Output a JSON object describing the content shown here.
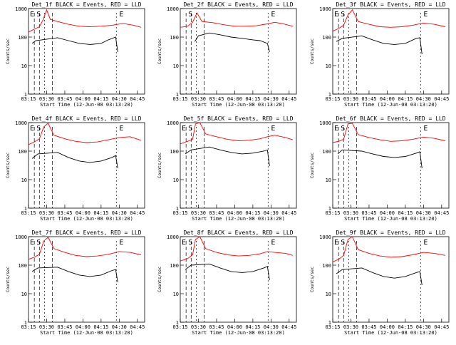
{
  "colors": {
    "events": "#000000",
    "lld": "#ff0000",
    "marker": "#000000"
  },
  "shared": {
    "xlabel": "Start Time (12-Jun-08 03:13:20)",
    "ylabel": "Counts/sec",
    "xticks": [
      "03:15",
      "03:30",
      "03:45",
      "04:00",
      "04:15",
      "04:30",
      "04:45"
    ],
    "yticks": [
      "1",
      "10",
      "100",
      "1000"
    ],
    "ylim": [
      1,
      1000
    ],
    "y_scale": "log",
    "marker_labels": {
      "start": "S",
      "end": "E"
    },
    "series_names": [
      "Events",
      "LLD"
    ]
  },
  "chart_data": [
    {
      "type": "line",
      "title": "Det_1f BLACK = Events, RED = LLD",
      "lld": [
        [
          3.25,
          150
        ],
        [
          3.33,
          190
        ],
        [
          3.4,
          230
        ],
        [
          3.45,
          400
        ],
        [
          3.5,
          900
        ],
        [
          3.55,
          420
        ],
        [
          3.65,
          350
        ],
        [
          3.8,
          280
        ],
        [
          3.95,
          240
        ],
        [
          4.1,
          230
        ],
        [
          4.25,
          240
        ],
        [
          4.4,
          260
        ],
        [
          4.55,
          300
        ],
        [
          4.7,
          260
        ],
        [
          4.8,
          220
        ]
      ],
      "events": [
        [
          3.3,
          60
        ],
        [
          3.35,
          75
        ],
        [
          3.65,
          95
        ],
        [
          3.8,
          75
        ],
        [
          3.95,
          60
        ],
        [
          4.1,
          55
        ],
        [
          4.25,
          60
        ],
        [
          4.35,
          80
        ],
        [
          4.45,
          100
        ],
        [
          4.48,
          30
        ]
      ],
      "legend_letters": [
        "E",
        "S",
        "E"
      ]
    },
    {
      "type": "line",
      "title": "Det_2f BLACK = Events, RED = LLD",
      "lld": [
        [
          3.25,
          220
        ],
        [
          3.35,
          240
        ],
        [
          3.42,
          330
        ],
        [
          3.48,
          700
        ],
        [
          3.55,
          350
        ],
        [
          3.7,
          320
        ],
        [
          3.85,
          270
        ],
        [
          4.0,
          240
        ],
        [
          4.15,
          240
        ],
        [
          4.3,
          250
        ],
        [
          4.45,
          290
        ],
        [
          4.55,
          330
        ],
        [
          4.65,
          300
        ],
        [
          4.8,
          240
        ]
      ],
      "events": [
        [
          3.45,
          70
        ],
        [
          3.5,
          110
        ],
        [
          3.65,
          140
        ],
        [
          3.8,
          120
        ],
        [
          3.95,
          100
        ],
        [
          4.1,
          90
        ],
        [
          4.25,
          80
        ],
        [
          4.35,
          75
        ],
        [
          4.45,
          60
        ],
        [
          4.48,
          30
        ]
      ],
      "legend_letters": [
        "S",
        "E"
      ]
    },
    {
      "type": "line",
      "title": "Det_3f BLACK = Events, RED = LLD",
      "lld": [
        [
          3.25,
          160
        ],
        [
          3.33,
          200
        ],
        [
          3.4,
          260
        ],
        [
          3.46,
          600
        ],
        [
          3.52,
          900
        ],
        [
          3.6,
          350
        ],
        [
          3.75,
          280
        ],
        [
          3.9,
          230
        ],
        [
          4.05,
          220
        ],
        [
          4.2,
          230
        ],
        [
          4.35,
          260
        ],
        [
          4.5,
          310
        ],
        [
          4.65,
          280
        ],
        [
          4.8,
          230
        ]
      ],
      "events": [
        [
          3.3,
          70
        ],
        [
          3.38,
          90
        ],
        [
          3.65,
          110
        ],
        [
          3.8,
          80
        ],
        [
          3.95,
          60
        ],
        [
          4.1,
          55
        ],
        [
          4.25,
          60
        ],
        [
          4.4,
          90
        ],
        [
          4.45,
          95
        ],
        [
          4.48,
          25
        ]
      ],
      "legend_letters": [
        "E",
        "S",
        "E"
      ]
    },
    {
      "type": "line",
      "title": "Det_4f BLACK = Events, RED = LLD",
      "lld": [
        [
          3.25,
          170
        ],
        [
          3.33,
          210
        ],
        [
          3.4,
          270
        ],
        [
          3.46,
          700
        ],
        [
          3.52,
          950
        ],
        [
          3.6,
          360
        ],
        [
          3.75,
          270
        ],
        [
          3.9,
          220
        ],
        [
          4.05,
          200
        ],
        [
          4.2,
          210
        ],
        [
          4.35,
          250
        ],
        [
          4.5,
          300
        ],
        [
          4.65,
          320
        ],
        [
          4.8,
          240
        ]
      ],
      "events": [
        [
          3.3,
          55
        ],
        [
          3.38,
          80
        ],
        [
          3.65,
          90
        ],
        [
          3.8,
          60
        ],
        [
          3.95,
          45
        ],
        [
          4.1,
          40
        ],
        [
          4.25,
          45
        ],
        [
          4.4,
          60
        ],
        [
          4.45,
          70
        ],
        [
          4.48,
          25
        ]
      ],
      "legend_letters": [
        "E",
        "S",
        "E"
      ]
    },
    {
      "type": "line",
      "title": "Det_5f BLACK = Events, RED = LLD",
      "lld": [
        [
          3.25,
          180
        ],
        [
          3.35,
          220
        ],
        [
          3.42,
          260
        ],
        [
          3.46,
          900
        ],
        [
          3.52,
          1000
        ],
        [
          3.6,
          400
        ],
        [
          3.75,
          320
        ],
        [
          3.9,
          260
        ],
        [
          4.05,
          230
        ],
        [
          4.2,
          240
        ],
        [
          4.35,
          270
        ],
        [
          4.45,
          320
        ],
        [
          4.55,
          360
        ],
        [
          4.7,
          300
        ],
        [
          4.8,
          250
        ]
      ],
      "events": [
        [
          3.32,
          80
        ],
        [
          3.4,
          110
        ],
        [
          3.65,
          140
        ],
        [
          3.8,
          110
        ],
        [
          3.95,
          90
        ],
        [
          4.1,
          80
        ],
        [
          4.25,
          85
        ],
        [
          4.4,
          100
        ],
        [
          4.45,
          110
        ],
        [
          4.48,
          30
        ]
      ],
      "legend_letters": [
        "E",
        "S",
        "E"
      ]
    },
    {
      "type": "line",
      "title": "Det_6f BLACK = Events, RED = LLD",
      "lld": [
        [
          3.25,
          200
        ],
        [
          3.33,
          220
        ],
        [
          3.4,
          260
        ],
        [
          3.46,
          900
        ],
        [
          3.52,
          950
        ],
        [
          3.6,
          380
        ],
        [
          3.75,
          300
        ],
        [
          3.9,
          250
        ],
        [
          4.05,
          220
        ],
        [
          4.2,
          230
        ],
        [
          4.35,
          260
        ],
        [
          4.5,
          310
        ],
        [
          4.65,
          280
        ],
        [
          4.8,
          230
        ]
      ],
      "events": [
        [
          3.32,
          80
        ],
        [
          3.38,
          110
        ],
        [
          3.65,
          100
        ],
        [
          3.8,
          80
        ],
        [
          3.95,
          65
        ],
        [
          4.1,
          60
        ],
        [
          4.25,
          65
        ],
        [
          4.4,
          85
        ],
        [
          4.45,
          95
        ],
        [
          4.48,
          25
        ]
      ],
      "legend_letters": [
        "E",
        "S",
        "E"
      ]
    },
    {
      "type": "line",
      "title": "Det_7f BLACK = Events, RED = LLD",
      "lld": [
        [
          3.25,
          160
        ],
        [
          3.33,
          190
        ],
        [
          3.4,
          240
        ],
        [
          3.46,
          700
        ],
        [
          3.52,
          950
        ],
        [
          3.6,
          380
        ],
        [
          3.75,
          280
        ],
        [
          3.9,
          220
        ],
        [
          4.05,
          200
        ],
        [
          4.2,
          210
        ],
        [
          4.35,
          240
        ],
        [
          4.5,
          300
        ],
        [
          4.65,
          280
        ],
        [
          4.8,
          230
        ]
      ],
      "events": [
        [
          3.3,
          60
        ],
        [
          3.38,
          80
        ],
        [
          3.65,
          85
        ],
        [
          3.8,
          60
        ],
        [
          3.95,
          45
        ],
        [
          4.1,
          40
        ],
        [
          4.25,
          45
        ],
        [
          4.4,
          65
        ],
        [
          4.45,
          70
        ],
        [
          4.48,
          25
        ]
      ],
      "legend_letters": [
        "E",
        "S",
        "E"
      ]
    },
    {
      "type": "line",
      "title": "Det_8f BLACK = Events, RED = LLD",
      "lld": [
        [
          3.25,
          140
        ],
        [
          3.35,
          170
        ],
        [
          3.42,
          230
        ],
        [
          3.46,
          800
        ],
        [
          3.52,
          1000
        ],
        [
          3.6,
          380
        ],
        [
          3.75,
          280
        ],
        [
          3.9,
          230
        ],
        [
          4.05,
          210
        ],
        [
          4.2,
          220
        ],
        [
          4.35,
          250
        ],
        [
          4.45,
          300
        ],
        [
          4.55,
          280
        ],
        [
          4.7,
          260
        ],
        [
          4.8,
          220
        ]
      ],
      "events": [
        [
          3.32,
          70
        ],
        [
          3.4,
          100
        ],
        [
          3.65,
          110
        ],
        [
          3.8,
          80
        ],
        [
          3.95,
          60
        ],
        [
          4.1,
          55
        ],
        [
          4.25,
          60
        ],
        [
          4.4,
          80
        ],
        [
          4.45,
          90
        ],
        [
          4.48,
          30
        ]
      ],
      "legend_letters": [
        "E",
        "S",
        "E"
      ]
    },
    {
      "type": "line",
      "title": "Det_9f BLACK = Events, RED = LLD",
      "lld": [
        [
          3.25,
          130
        ],
        [
          3.33,
          160
        ],
        [
          3.4,
          220
        ],
        [
          3.46,
          800
        ],
        [
          3.52,
          1000
        ],
        [
          3.6,
          350
        ],
        [
          3.75,
          260
        ],
        [
          3.9,
          210
        ],
        [
          4.05,
          190
        ],
        [
          4.2,
          200
        ],
        [
          4.35,
          230
        ],
        [
          4.5,
          280
        ],
        [
          4.65,
          260
        ],
        [
          4.8,
          220
        ]
      ],
      "events": [
        [
          3.3,
          50
        ],
        [
          3.38,
          70
        ],
        [
          3.65,
          80
        ],
        [
          3.8,
          55
        ],
        [
          3.95,
          40
        ],
        [
          4.1,
          35
        ],
        [
          4.25,
          40
        ],
        [
          4.4,
          55
        ],
        [
          4.45,
          60
        ],
        [
          4.48,
          20
        ]
      ],
      "legend_letters": [
        "E",
        "S",
        "E"
      ]
    }
  ]
}
